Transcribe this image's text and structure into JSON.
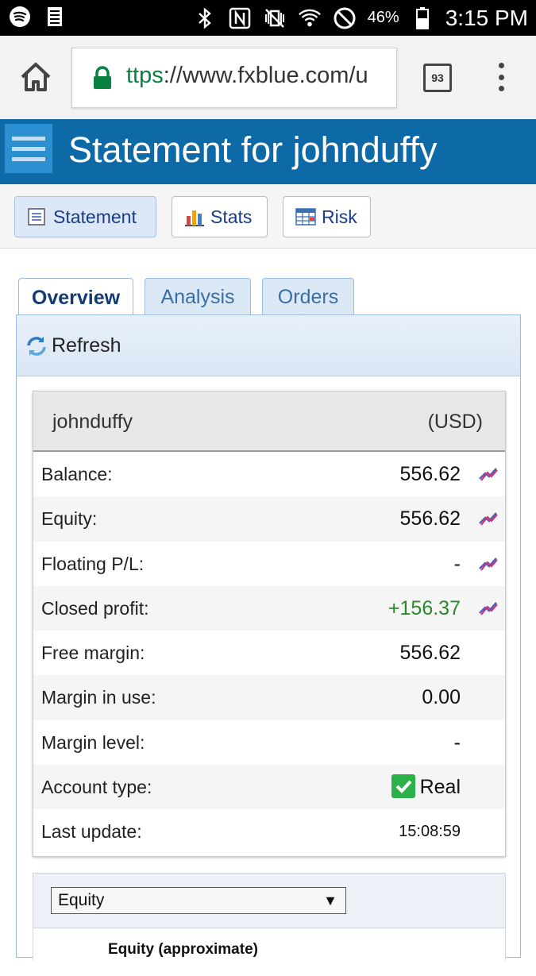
{
  "status_bar": {
    "battery": "46%",
    "time": "3:15 PM"
  },
  "browser": {
    "url_scheme": "ttps",
    "url_rest": "://www.fxblue.com/u",
    "tab_count": "93"
  },
  "header": {
    "title": "Statement for johnduffy"
  },
  "nav": {
    "statement": "Statement",
    "stats": "Stats",
    "risk": "Risk"
  },
  "tabs": {
    "overview": "Overview",
    "analysis": "Analysis",
    "orders": "Orders"
  },
  "refresh_label": "Refresh",
  "account": {
    "name": "johnduffy",
    "currency": "(USD)",
    "rows": [
      {
        "label": "Balance:",
        "value": "556.62"
      },
      {
        "label": "Equity:",
        "value": "556.62"
      },
      {
        "label": "Floating P/L:",
        "value": "-"
      },
      {
        "label": "Closed profit:",
        "value": "+156.37"
      },
      {
        "label": "Free margin:",
        "value": "556.62"
      },
      {
        "label": "Margin in use:",
        "value": "0.00"
      },
      {
        "label": "Margin level:",
        "value": "-"
      },
      {
        "label": "Account type:",
        "value": "Real"
      },
      {
        "label": "Last update:",
        "value": "15:08:59"
      }
    ]
  },
  "equity": {
    "select_value": "Equity",
    "chart_title": "Equity (approximate)"
  },
  "colors": {
    "header_bg": "#0e6aa6",
    "positive": "#2a8a2a",
    "link": "#1a3c88"
  }
}
